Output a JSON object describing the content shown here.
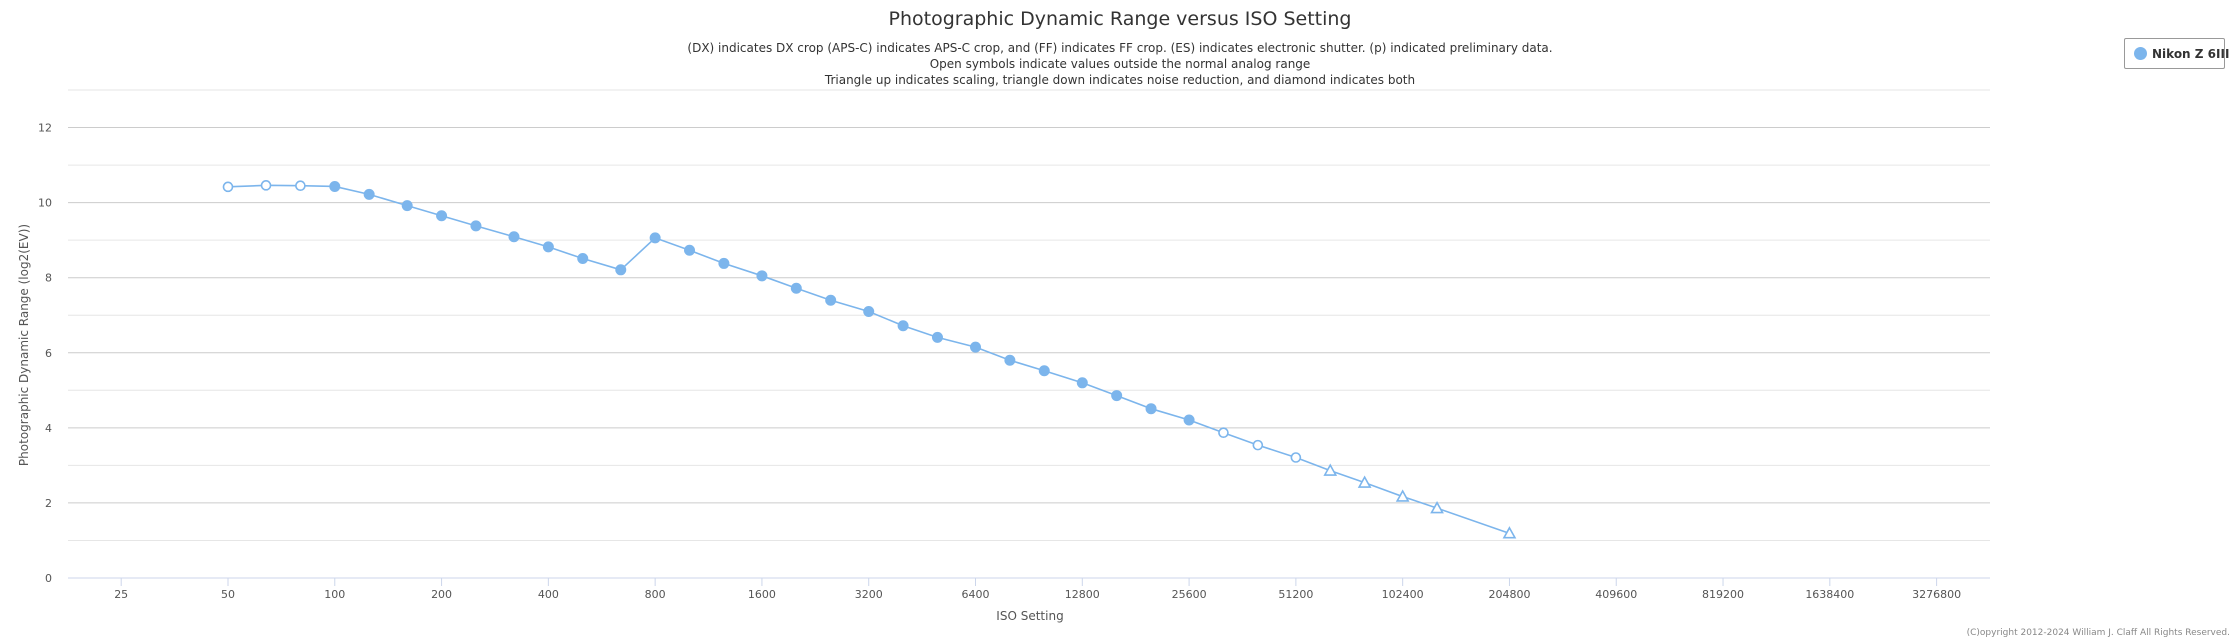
{
  "chart_data": {
    "type": "line",
    "title": "Photographic Dynamic Range versus ISO Setting",
    "subtitle": [
      "(DX) indicates DX crop (APS-C) indicates APS-C crop, and (FF) indicates FF crop. (ES) indicates electronic shutter. (p) indicated preliminary data.",
      "Open symbols indicate values outside the normal analog range",
      "Triangle up indicates scaling, triangle down indicates noise reduction, and diamond indicates both"
    ],
    "xlabel": "ISO Setting",
    "ylabel": "Photographic Dynamic Range (log2(EV))",
    "x_scale": "log2",
    "x_ticks": [
      25,
      50,
      100,
      200,
      400,
      800,
      1600,
      3200,
      6400,
      12800,
      25600,
      51200,
      102400,
      204800,
      409600,
      819200,
      1638400,
      3276800
    ],
    "xlim": [
      17.7,
      4634000
    ],
    "y_ticks": [
      0,
      2,
      4,
      6,
      8,
      10,
      12
    ],
    "ylim": [
      0,
      13
    ],
    "grid": true,
    "legend_position": "top-right",
    "series": [
      {
        "name": "Nikon Z 6III",
        "color": "#7cb5ec",
        "points": [
          {
            "x": 50,
            "y": 10.42,
            "marker": "circle-open"
          },
          {
            "x": 64,
            "y": 10.46,
            "marker": "circle-open"
          },
          {
            "x": 80,
            "y": 10.45,
            "marker": "circle-open"
          },
          {
            "x": 100,
            "y": 10.43,
            "marker": "circle"
          },
          {
            "x": 125,
            "y": 10.22,
            "marker": "circle"
          },
          {
            "x": 160,
            "y": 9.92,
            "marker": "circle"
          },
          {
            "x": 200,
            "y": 9.65,
            "marker": "circle"
          },
          {
            "x": 250,
            "y": 9.38,
            "marker": "circle"
          },
          {
            "x": 320,
            "y": 9.09,
            "marker": "circle"
          },
          {
            "x": 400,
            "y": 8.82,
            "marker": "circle"
          },
          {
            "x": 500,
            "y": 8.51,
            "marker": "circle"
          },
          {
            "x": 640,
            "y": 8.21,
            "marker": "circle"
          },
          {
            "x": 800,
            "y": 9.06,
            "marker": "circle"
          },
          {
            "x": 1000,
            "y": 8.73,
            "marker": "circle"
          },
          {
            "x": 1250,
            "y": 8.38,
            "marker": "circle"
          },
          {
            "x": 1600,
            "y": 8.05,
            "marker": "circle"
          },
          {
            "x": 2000,
            "y": 7.72,
            "marker": "circle"
          },
          {
            "x": 2500,
            "y": 7.4,
            "marker": "circle"
          },
          {
            "x": 3200,
            "y": 7.1,
            "marker": "circle"
          },
          {
            "x": 4000,
            "y": 6.72,
            "marker": "circle"
          },
          {
            "x": 5000,
            "y": 6.41,
            "marker": "circle"
          },
          {
            "x": 6400,
            "y": 6.15,
            "marker": "circle"
          },
          {
            "x": 8000,
            "y": 5.8,
            "marker": "circle"
          },
          {
            "x": 10000,
            "y": 5.52,
            "marker": "circle"
          },
          {
            "x": 12800,
            "y": 5.2,
            "marker": "circle"
          },
          {
            "x": 16000,
            "y": 4.86,
            "marker": "circle"
          },
          {
            "x": 20000,
            "y": 4.51,
            "marker": "circle"
          },
          {
            "x": 25600,
            "y": 4.21,
            "marker": "circle"
          },
          {
            "x": 32000,
            "y": 3.87,
            "marker": "circle-open"
          },
          {
            "x": 40000,
            "y": 3.54,
            "marker": "circle-open"
          },
          {
            "x": 51200,
            "y": 3.21,
            "marker": "circle-open"
          },
          {
            "x": 64000,
            "y": 2.86,
            "marker": "triangle-up-open"
          },
          {
            "x": 80000,
            "y": 2.54,
            "marker": "triangle-up-open"
          },
          {
            "x": 102400,
            "y": 2.17,
            "marker": "triangle-up-open"
          },
          {
            "x": 128000,
            "y": 1.86,
            "marker": "triangle-up-open"
          },
          {
            "x": 204800,
            "y": 1.19,
            "marker": "triangle-up-open"
          }
        ]
      }
    ]
  },
  "legend": {
    "label": "Nikon Z 6III"
  },
  "credit": "(C)opyright 2012-2024 William J. Claff All Rights Reserved."
}
